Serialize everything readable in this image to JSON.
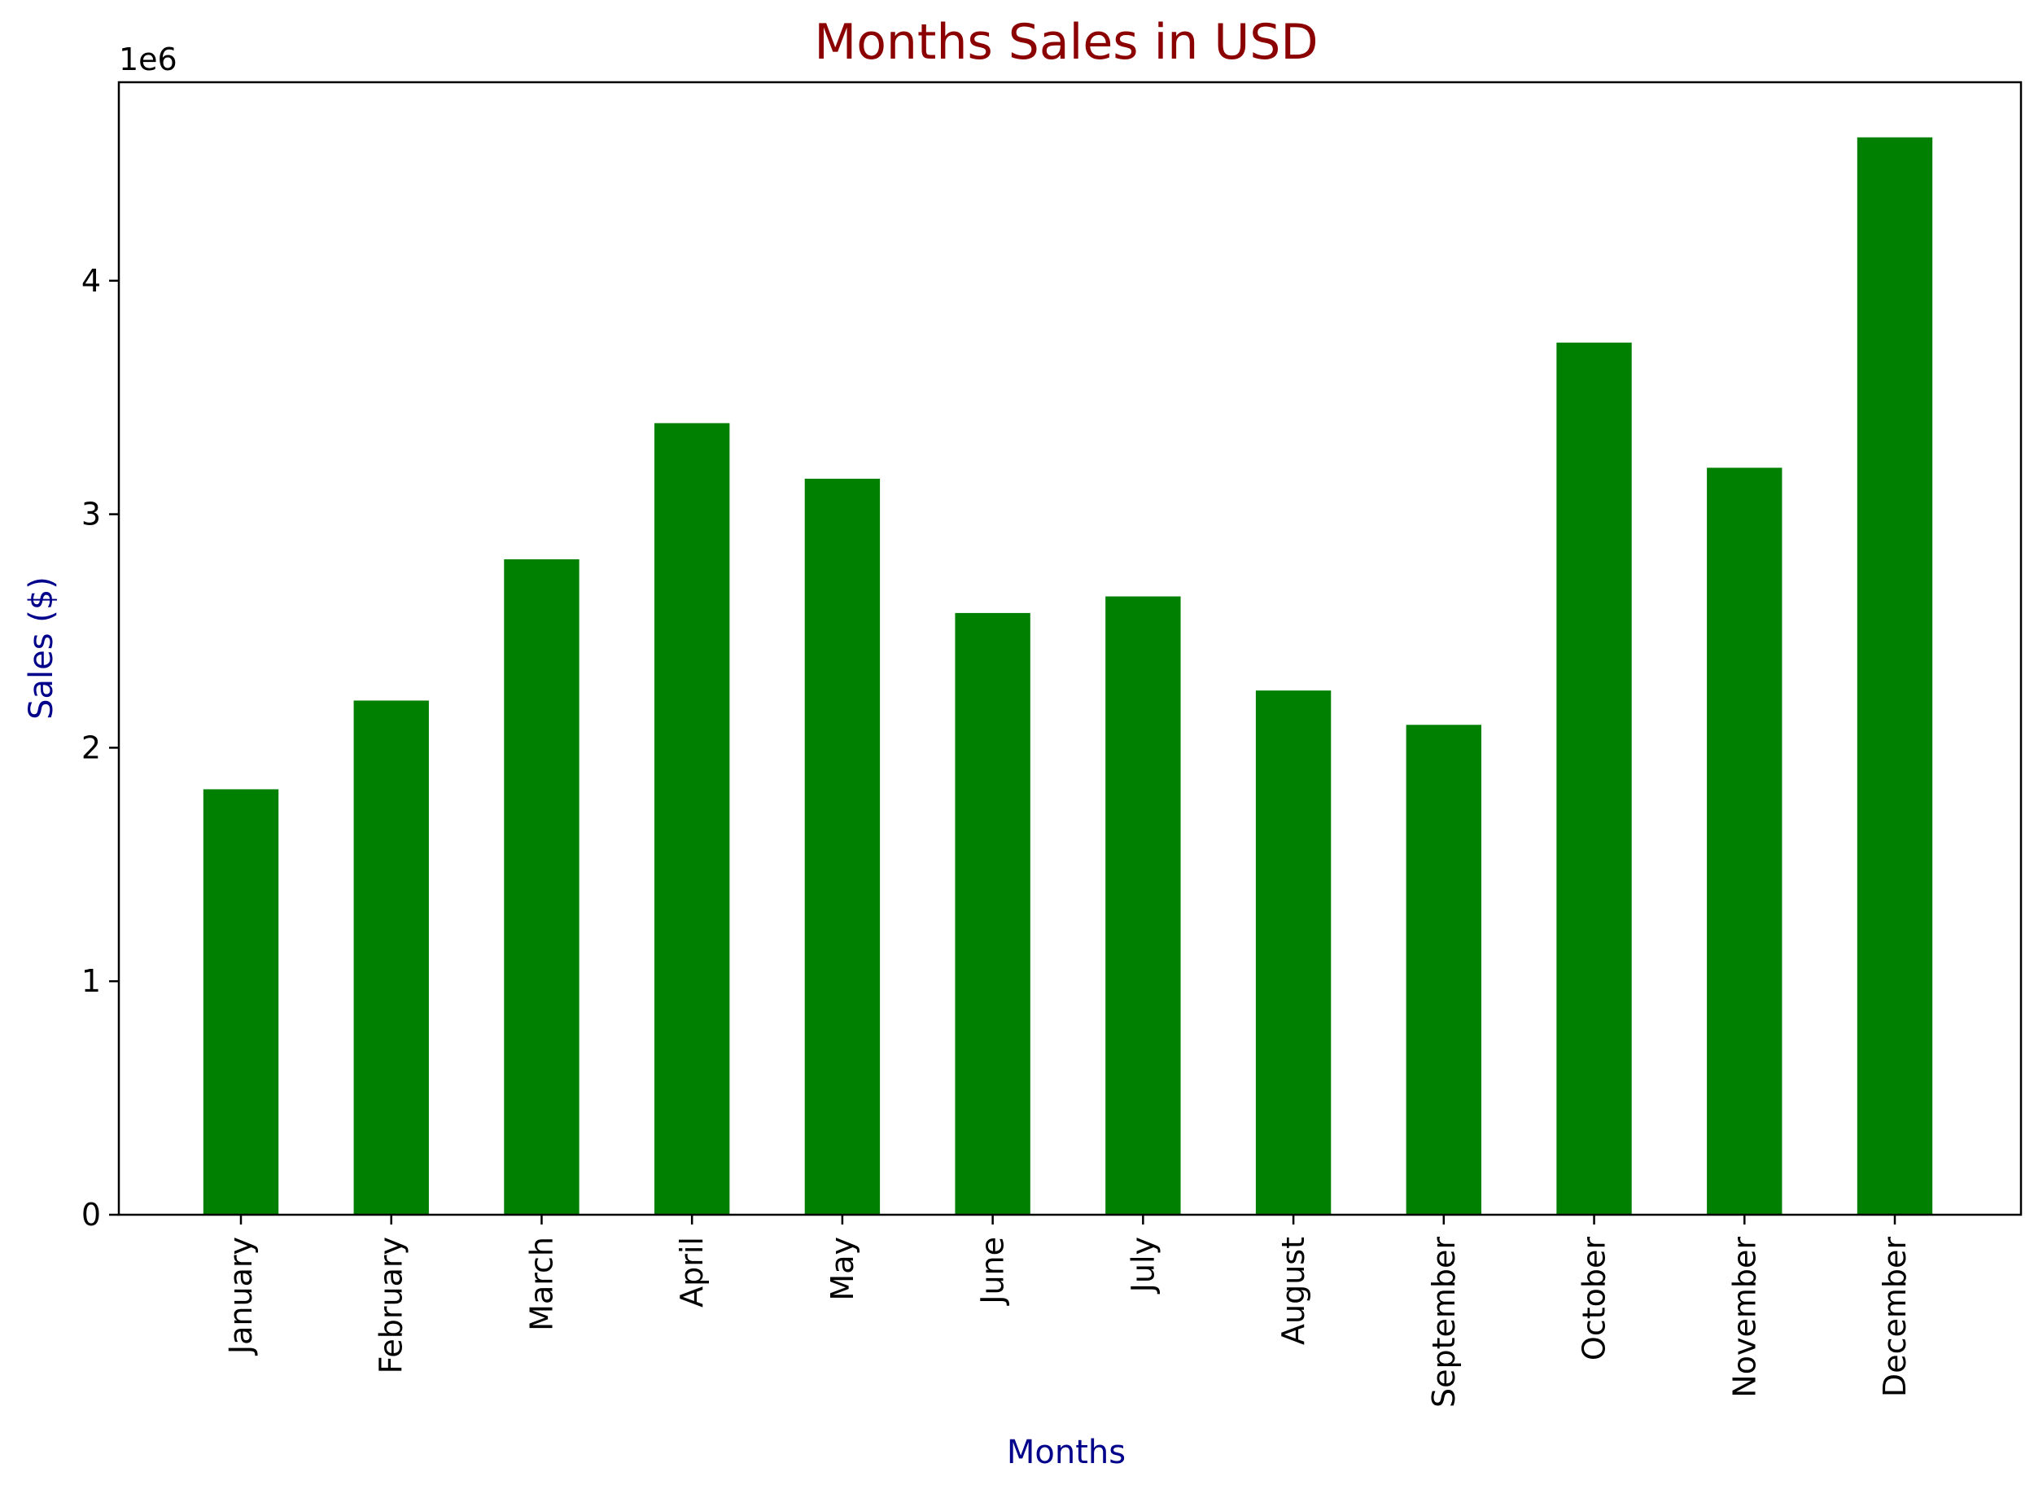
{
  "chart_data": {
    "type": "bar",
    "title": "Months Sales in USD",
    "xlabel": "Months",
    "ylabel": "Sales ($)",
    "y_offset_text": "1e6",
    "categories": [
      "January",
      "February",
      "March",
      "April",
      "May",
      "June",
      "July",
      "August",
      "September",
      "October",
      "November",
      "December"
    ],
    "values": [
      1822000,
      2202000,
      2807000,
      3390000,
      3152000,
      2577000,
      2648000,
      2245000,
      2098000,
      3735000,
      3199000,
      4614000
    ],
    "ylim": [
      0,
      4850000
    ],
    "yticks": [
      0,
      1000000,
      2000000,
      3000000,
      4000000
    ],
    "ytick_labels": [
      "0",
      "1",
      "2",
      "3",
      "4"
    ],
    "grid": false,
    "legend": "none",
    "colors": {
      "bar": "#008000",
      "title": "#8b0000",
      "axis_label": "#00008b",
      "axis": "#000000"
    }
  }
}
